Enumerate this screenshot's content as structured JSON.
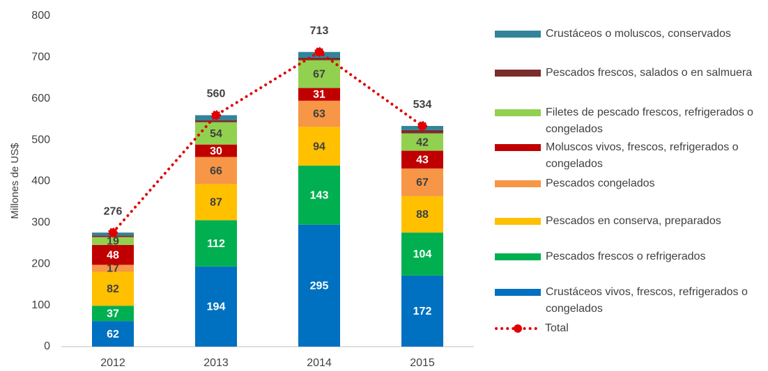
{
  "chart_data": {
    "type": "bar",
    "stacked": true,
    "y_axis_label": "Millones de US$",
    "categories": [
      "2012",
      "2013",
      "2014",
      "2015"
    ],
    "ylim": [
      0,
      800
    ],
    "yticks": [
      0,
      100,
      200,
      300,
      400,
      500,
      600,
      700,
      800
    ],
    "grid": false,
    "legend": "right",
    "series": [
      {
        "name": "Crustáceos vivos, frescos, refrigerados o congelados",
        "color": "#0070c0",
        "values": [
          62,
          194,
          295,
          172
        ]
      },
      {
        "name": "Pescados frescos o refrigerados",
        "color": "#00b050",
        "values": [
          37,
          112,
          143,
          104
        ]
      },
      {
        "name": "Pescados en conserva, preparados",
        "color": "#ffc000",
        "values": [
          82,
          87,
          94,
          88
        ]
      },
      {
        "name": "Pescados congelados",
        "color": "#f79646",
        "values": [
          17,
          66,
          63,
          67
        ]
      },
      {
        "name": "Moluscos vivos, frescos, refrigerados o congelados",
        "color": "#c00000",
        "values": [
          48,
          30,
          31,
          43
        ]
      },
      {
        "name": "Filetes de pescado frescos, refrigerados o congelados",
        "color": "#92d050",
        "values": [
          19,
          54,
          67,
          42
        ]
      },
      {
        "name": "Pescados frescos, salados o en salmuera",
        "color": "#7b2c2c",
        "values": [
          4,
          5,
          6,
          8
        ]
      },
      {
        "name": "Crustáceos o moluscos, conservados",
        "color": "#31849b",
        "values": [
          7,
          12,
          14,
          10
        ]
      }
    ],
    "total": {
      "name": "Total",
      "color": "#e00000",
      "values": [
        276,
        560,
        713,
        534
      ]
    }
  }
}
